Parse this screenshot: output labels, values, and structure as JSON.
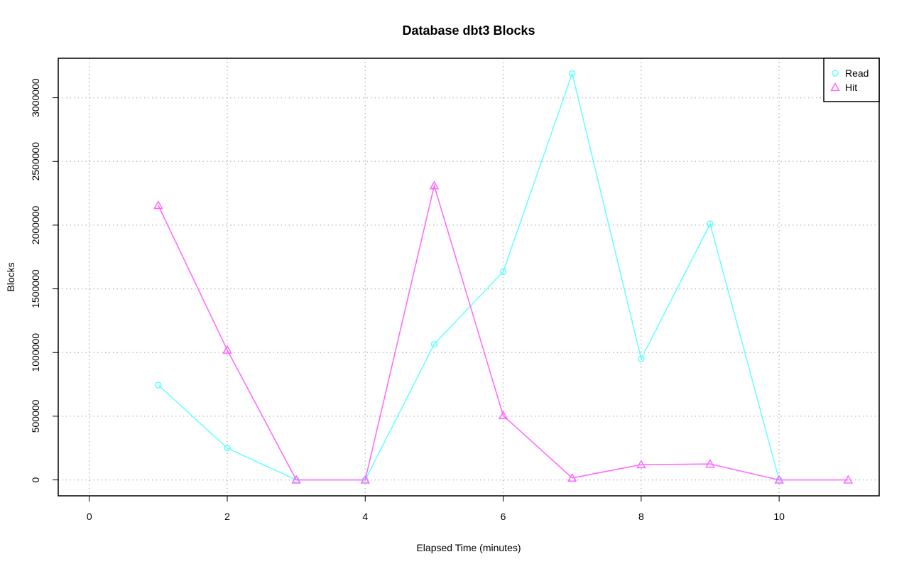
{
  "chart_data": {
    "type": "line",
    "title": "Database dbt3 Blocks",
    "xlabel": "Elapsed Time (minutes)",
    "ylabel": "Blocks",
    "xlim": [
      -0.45,
      11.45
    ],
    "ylim": [
      -125000,
      3310000
    ],
    "xticks": [
      0,
      2,
      4,
      6,
      8,
      10
    ],
    "xtick_labels": [
      "0",
      "2",
      "4",
      "6",
      "8",
      "10"
    ],
    "yticks": [
      0,
      500000,
      1000000,
      1500000,
      2000000,
      2500000,
      3000000
    ],
    "ytick_labels": [
      "0",
      "500000",
      "1000000",
      "1500000",
      "2000000",
      "2500000",
      "3000000"
    ],
    "grid": true,
    "legend_position": "top-right",
    "x": [
      1,
      2,
      3,
      4,
      5,
      6,
      7,
      8,
      9,
      10,
      11
    ],
    "series": [
      {
        "name": "Read",
        "color": "#66ffff",
        "marker": "circle",
        "values": [
          745000,
          250000,
          0,
          0,
          1065000,
          1635000,
          3190000,
          950000,
          2010000,
          0,
          null
        ]
      },
      {
        "name": "Hit",
        "color": "#ff66ff",
        "marker": "triangle",
        "values": [
          2155000,
          1020000,
          0,
          0,
          2310000,
          505000,
          15000,
          120000,
          125000,
          0,
          0
        ]
      }
    ]
  }
}
